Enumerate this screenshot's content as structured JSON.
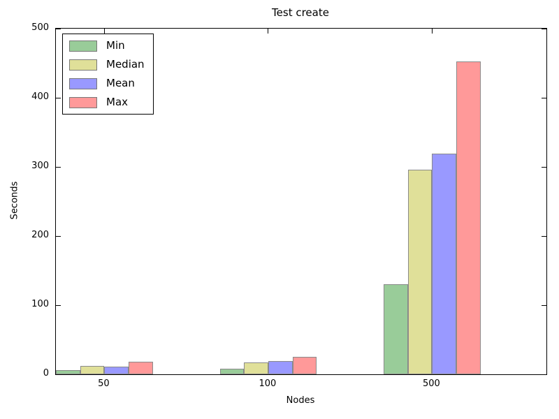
{
  "chart_data": {
    "type": "bar",
    "title": "Test create",
    "xlabel": "Nodes",
    "ylabel": "Seconds",
    "categories": [
      "50",
      "100",
      "500"
    ],
    "series": [
      {
        "name": "Min",
        "color": "#99cc99",
        "values": [
          6,
          8,
          130
        ]
      },
      {
        "name": "Median",
        "color": "#e0e099",
        "values": [
          12,
          17,
          296
        ]
      },
      {
        "name": "Mean",
        "color": "#9999ff",
        "values": [
          11,
          19,
          319
        ]
      },
      {
        "name": "Max",
        "color": "#ff9999",
        "values": [
          18,
          25,
          453
        ]
      }
    ],
    "ylim": [
      0,
      500
    ],
    "yticks": [
      0,
      100,
      200,
      300,
      400,
      500
    ],
    "bar_edge_color": "#8a8a8a",
    "legend_edge_color": "#777777",
    "legend_position": "upper left",
    "grid": false
  }
}
